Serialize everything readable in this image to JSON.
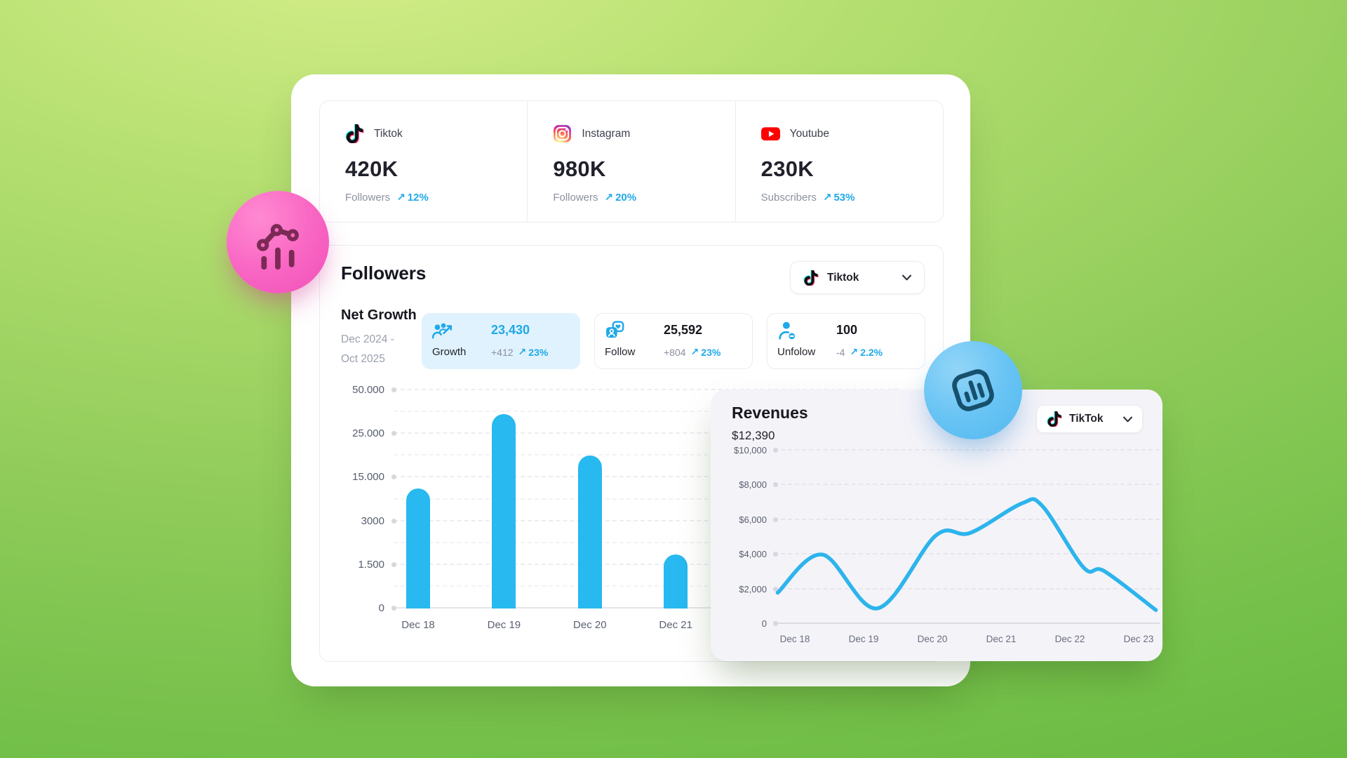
{
  "icons": {
    "trend_up": "↗"
  },
  "colors": {
    "accent_blue": "#1fa9e8",
    "bar_blue": "#27b9ef",
    "line_blue": "#2db4ec",
    "growth_card_bg": "#e0f2fd",
    "panel_bg": "#f4f3f8",
    "pink_badge": "#f968c4",
    "pink_badge_icon": "#7c2a55",
    "blue_badge": "#69c4f4",
    "blue_badge_icon": "#16506c"
  },
  "platform_stats": {
    "items": [
      {
        "name": "Tiktok",
        "icon": "tiktok-icon",
        "value": "420K",
        "metric": "Followers",
        "change": "12%"
      },
      {
        "name": "Instagram",
        "icon": "instagram-icon",
        "value": "980K",
        "metric": "Followers",
        "change": "20%"
      },
      {
        "name": "Youtube",
        "icon": "youtube-icon",
        "value": "230K",
        "metric": "Subscribers",
        "change": "53%"
      }
    ]
  },
  "followers_section": {
    "title": "Followers",
    "platform_selector": {
      "label": "Tiktok"
    },
    "net_growth": {
      "title": "Net Growth",
      "period_line1": "Dec 2024 -",
      "period_line2": "Oct 2025"
    },
    "stats": [
      {
        "label": "Growth",
        "value": "23,430",
        "delta": "+412",
        "change": "23%"
      },
      {
        "label": "Follow",
        "value": "25,592",
        "delta": "+804",
        "change": "23%"
      },
      {
        "label": "Unfolow",
        "value": "100",
        "delta": "-4",
        "change": "2.2%"
      }
    ]
  },
  "revenues_section": {
    "title": "Revenues",
    "total": "$12,390",
    "platform_selector": {
      "label": "TikTok"
    }
  },
  "chart_data": [
    {
      "id": "followers_net_growth_bars",
      "type": "bar",
      "title": "Followers net growth by day",
      "categories": [
        "Dec 18",
        "Dec 19",
        "Dec 20",
        "Dec 21"
      ],
      "values": [
        12000,
        36500,
        20000,
        1850
      ],
      "y_ticks": [
        0,
        1500,
        3000,
        15000,
        25000,
        50000
      ],
      "y_tick_labels": [
        "0",
        "1.500",
        "3000",
        "15.000",
        "25.000",
        "50.000"
      ],
      "xlabel": "",
      "ylabel": "",
      "grid": "dashed-horizontal",
      "legend": "none",
      "note": "y ticks evenly spaced (non-linear scale); values estimated from bar tops; chart right side hidden under revenues panel"
    },
    {
      "id": "revenues_line",
      "type": "line",
      "title": "Revenues by day",
      "x_tick_labels": [
        "Dec 18",
        "Dec 19",
        "Dec 20",
        "Dec 21",
        "Dec 22",
        "Dec 23"
      ],
      "y_ticks": [
        0,
        2000,
        4000,
        6000,
        8000,
        10000
      ],
      "y_tick_labels": [
        "0",
        "$2,000",
        "$4,000",
        "$6,000",
        "$8,000",
        "$10,000"
      ],
      "ylim": [
        0,
        10000
      ],
      "points_day_value": [
        [
          -0.25,
          1800
        ],
        [
          0.4,
          4000
        ],
        [
          1.2,
          900
        ],
        [
          2.05,
          5100
        ],
        [
          2.55,
          5250
        ],
        [
          3.3,
          6950
        ],
        [
          3.6,
          6800
        ],
        [
          4.2,
          3250
        ],
        [
          4.5,
          3050
        ],
        [
          5.25,
          800
        ]
      ],
      "grid": "dashed-horizontal",
      "legend": "none",
      "note": "day 0 = Dec 18; smooth curved line, values estimated from gridlines"
    }
  ]
}
